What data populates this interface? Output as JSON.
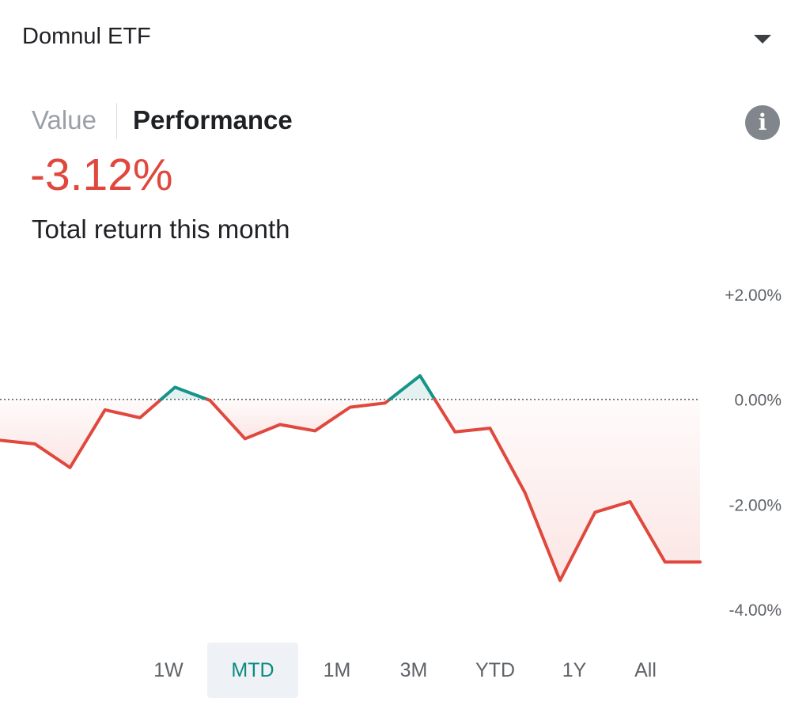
{
  "account": {
    "name": "Domnul ETF"
  },
  "view_toggle": {
    "value_label": "Value",
    "performance_label": "Performance",
    "selected": "Performance"
  },
  "summary": {
    "return_value": "-3.12%",
    "return_label": "Total return this month"
  },
  "colors": {
    "negative": "#e0483e",
    "positive": "#16948a",
    "active_tab_text": "#0b8a7f",
    "active_tab_bg": "#eef1f5"
  },
  "chart_data": {
    "type": "area",
    "ylim": [
      -4.0,
      2.0
    ],
    "y_ticks": [
      "+2.00%",
      "0.00%",
      "-2.00%",
      "-4.00%"
    ],
    "y_tick_values": [
      2.0,
      0.0,
      -2.0,
      -4.0
    ],
    "baseline": 0.0,
    "series": [
      {
        "values": [
          -0.78,
          -0.85,
          -1.3,
          -0.2,
          -0.35,
          0.23,
          -0.02,
          -0.75,
          -0.48,
          -0.6,
          -0.15,
          -0.07,
          0.45,
          -0.62,
          -0.55,
          -1.78,
          -3.45,
          -2.15,
          -1.95,
          -3.1,
          -3.1
        ]
      }
    ]
  },
  "range_tabs": {
    "items": [
      "1W",
      "MTD",
      "1M",
      "3M",
      "YTD",
      "1Y",
      "All"
    ],
    "selected": "MTD"
  }
}
